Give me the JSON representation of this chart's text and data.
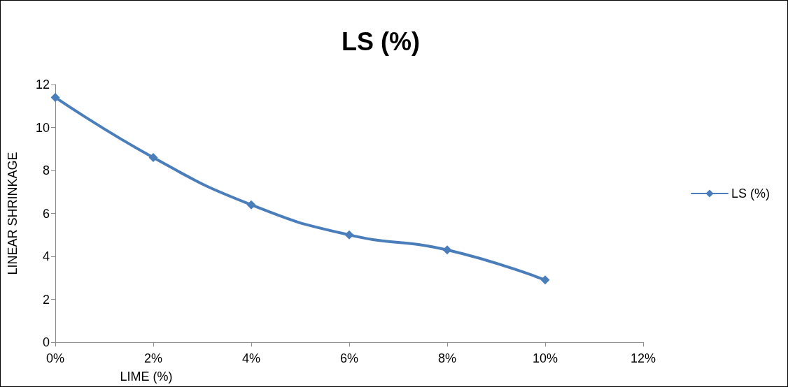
{
  "chart_data": {
    "type": "line",
    "title": "LS (%)",
    "xlabel": "LIME (%)",
    "ylabel": "LINEAR SHRINKAGE",
    "x": [
      0,
      2,
      4,
      6,
      8,
      10
    ],
    "series": [
      {
        "name": "LS (%)",
        "color": "#4a7ebb",
        "values": [
          11.4,
          8.6,
          6.4,
          5.0,
          4.3,
          2.9
        ]
      }
    ],
    "xlim": [
      0,
      12
    ],
    "xticks": [
      {
        "value": 0,
        "label": "0%"
      },
      {
        "value": 2,
        "label": "2%"
      },
      {
        "value": 4,
        "label": "4%"
      },
      {
        "value": 6,
        "label": "6%"
      },
      {
        "value": 8,
        "label": "8%"
      },
      {
        "value": 10,
        "label": "10%"
      },
      {
        "value": 12,
        "label": "12%"
      }
    ],
    "ylim": [
      0,
      12
    ],
    "yticks": [
      0,
      2,
      4,
      6,
      8,
      10,
      12
    ],
    "grid": false,
    "legend": "right",
    "marker": "diamond",
    "line_style": "solid"
  }
}
